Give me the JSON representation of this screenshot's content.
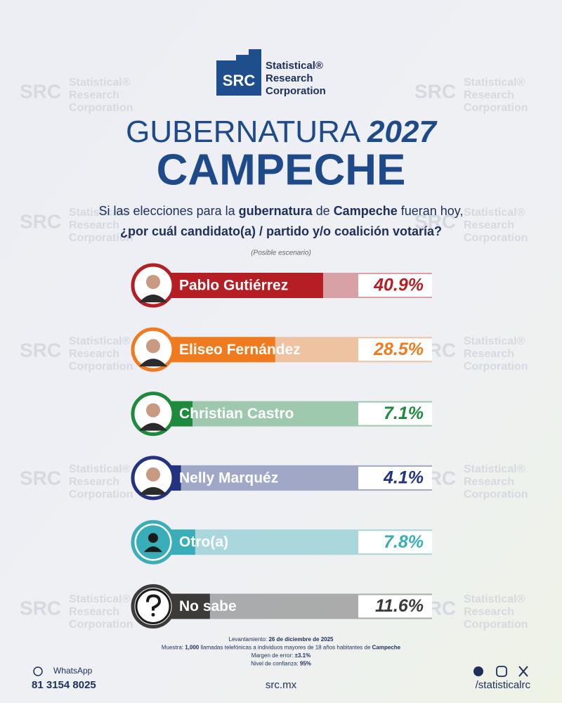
{
  "header": {
    "logo": "SRC",
    "brand": [
      "Statistical®",
      "Research",
      "Corporation"
    ]
  },
  "title": {
    "main": "GUBERNATURA",
    "year": "2027",
    "state": "CAMPECHE"
  },
  "question": {
    "line1": [
      "Si las elecciones para la ",
      "gubernatura",
      " de ",
      "Campeche",
      " fueran hoy,"
    ],
    "line2": "¿por cuál candidato(a) / partido y/o coalición votaría?",
    "note": "(Posible escenario)"
  },
  "chart_data": {
    "type": "bar",
    "orientation": "horizontal",
    "categories": [
      "Pablo Gutiérrez",
      "Eliseo Fernández",
      "Christian Castro",
      "Nelly Marquéz",
      "Otro(a)",
      "No sabe"
    ],
    "values": [
      40.9,
      28.5,
      7.1,
      4.1,
      7.8,
      11.6
    ],
    "value_labels": [
      "40.9%",
      "28.5%",
      "7.1%",
      "4.1%",
      "7.8%",
      "11.6%"
    ],
    "colors": [
      "#b51f24",
      "#f07a1e",
      "#1e8a3c",
      "#24337f",
      "#3aaeb8",
      "#3d3a3a"
    ],
    "xlim": [
      0,
      50
    ]
  },
  "methodology": [
    [
      "Levantamiento: ",
      "26 de diciembre de 2025"
    ],
    [
      "Muestra: ",
      "1,000",
      " llamadas telefónicas a individuos mayores de 18 años habitantes de ",
      "Campeche"
    ],
    [
      "Margen de error: ",
      "±3.1%"
    ],
    [
      "Nivel de confianza: ",
      "95%"
    ]
  ],
  "footer": {
    "whatsapp": "WhatsApp",
    "phone": "81 3154 8025",
    "site": "src.mx",
    "handle": "/statisticalrc"
  }
}
